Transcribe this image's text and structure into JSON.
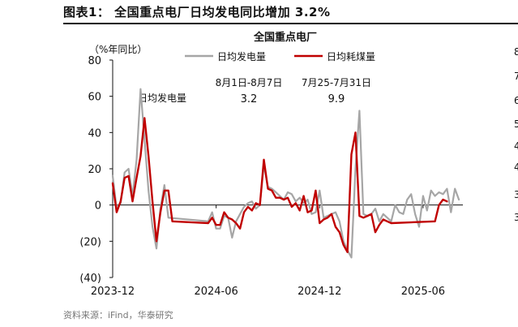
{
  "figure_title": "图表1：  全国重点电厂日均发电同比增加 3.2%",
  "source": "资料来源：iFind，华泰研究",
  "chart_data": {
    "type": "line",
    "title": "全国重点电厂",
    "ylabel": "（%年同比）",
    "xlabel": "",
    "ylim": [
      -40,
      80
    ],
    "yticks": [
      -40,
      -20,
      0,
      20,
      40,
      60,
      80
    ],
    "ytick_labels": [
      "(40)",
      "(20)",
      "0",
      "20",
      "40",
      "60",
      "80"
    ],
    "xtick_labels": [
      "2023-12",
      "2024-06",
      "2024-12",
      "2025-06"
    ],
    "xtick_values": [
      0,
      26,
      52,
      78
    ],
    "xlim": [
      0,
      88
    ],
    "grid": false,
    "legend_position": "top-center",
    "colors": {
      "generation": "#a6a6a6",
      "coal": "#c00000"
    },
    "series": [
      {
        "name": "日均发电量",
        "color": "#a6a6a6",
        "points": [
          [
            0,
            16
          ],
          [
            1,
            -2
          ],
          [
            2,
            1
          ],
          [
            3,
            18
          ],
          [
            4,
            20
          ],
          [
            5,
            5
          ],
          [
            6,
            25
          ],
          [
            7,
            64
          ],
          [
            8,
            36
          ],
          [
            9,
            8
          ],
          [
            10,
            -12
          ],
          [
            11,
            -24
          ],
          [
            12,
            -2
          ],
          [
            13,
            11
          ],
          [
            14,
            -7
          ],
          [
            24,
            -9
          ],
          [
            25,
            -4
          ],
          [
            26,
            -13
          ],
          [
            27,
            -13
          ],
          [
            28,
            -6
          ],
          [
            29,
            -7
          ],
          [
            30,
            -18
          ],
          [
            31,
            -9
          ],
          [
            32,
            -5
          ],
          [
            33,
            -1
          ],
          [
            34,
            1
          ],
          [
            35,
            2
          ],
          [
            36,
            -2
          ],
          [
            37,
            0
          ],
          [
            38,
            22
          ],
          [
            39,
            10
          ],
          [
            40,
            9
          ],
          [
            41,
            7
          ],
          [
            42,
            5
          ],
          [
            43,
            3
          ],
          [
            44,
            7
          ],
          [
            45,
            6
          ],
          [
            46,
            2
          ],
          [
            47,
            4
          ],
          [
            48,
            1
          ],
          [
            49,
            3
          ],
          [
            50,
            -5
          ],
          [
            51,
            -4
          ],
          [
            52,
            8
          ],
          [
            53,
            -7
          ],
          [
            54,
            -6
          ],
          [
            55,
            -5
          ],
          [
            56,
            -4
          ],
          [
            57,
            -9
          ],
          [
            58,
            -20
          ],
          [
            59,
            -25
          ],
          [
            60,
            -29
          ],
          [
            61,
            20
          ],
          [
            62,
            52
          ],
          [
            63,
            -5
          ],
          [
            64,
            -6
          ],
          [
            65,
            -5
          ],
          [
            66,
            -2
          ],
          [
            67,
            -9
          ],
          [
            68,
            -5
          ],
          [
            69,
            -7
          ],
          [
            70,
            -9
          ],
          [
            71,
            0
          ],
          [
            72,
            -4
          ],
          [
            73,
            -5
          ],
          [
            74,
            3
          ],
          [
            75,
            6
          ],
          [
            76,
            -5
          ],
          [
            77,
            -12
          ],
          [
            78,
            5
          ],
          [
            79,
            -3
          ],
          [
            80,
            8
          ],
          [
            81,
            5
          ],
          [
            82,
            7
          ],
          [
            83,
            6
          ],
          [
            84,
            9
          ],
          [
            85,
            -4
          ],
          [
            86,
            9
          ],
          [
            87,
            3
          ]
        ]
      },
      {
        "name": "日均耗煤量",
        "color": "#c00000",
        "points": [
          [
            0,
            12
          ],
          [
            1,
            -4
          ],
          [
            2,
            2
          ],
          [
            3,
            15
          ],
          [
            4,
            16
          ],
          [
            5,
            2
          ],
          [
            6,
            15
          ],
          [
            7,
            27
          ],
          [
            8,
            48
          ],
          [
            9,
            27
          ],
          [
            10,
            2
          ],
          [
            11,
            -20
          ],
          [
            12,
            -4
          ],
          [
            13,
            8
          ],
          [
            14,
            8
          ],
          [
            15,
            -9
          ],
          [
            24,
            -10
          ],
          [
            25,
            -7
          ],
          [
            26,
            -11
          ],
          [
            27,
            -11
          ],
          [
            28,
            -4
          ],
          [
            29,
            -7
          ],
          [
            30,
            -8
          ],
          [
            31,
            -10
          ],
          [
            32,
            -13
          ],
          [
            33,
            -4
          ],
          [
            34,
            -1
          ],
          [
            35,
            -3
          ],
          [
            36,
            1
          ],
          [
            37,
            0
          ],
          [
            38,
            25
          ],
          [
            39,
            9
          ],
          [
            40,
            8
          ],
          [
            41,
            4
          ],
          [
            42,
            4
          ],
          [
            43,
            3
          ],
          [
            44,
            4
          ],
          [
            45,
            -1
          ],
          [
            46,
            1
          ],
          [
            47,
            -3
          ],
          [
            48,
            5
          ],
          [
            49,
            -4
          ],
          [
            50,
            -3
          ],
          [
            51,
            8
          ],
          [
            52,
            -10
          ],
          [
            53,
            -8
          ],
          [
            54,
            -7
          ],
          [
            55,
            -5
          ],
          [
            56,
            -12
          ],
          [
            57,
            -15
          ],
          [
            58,
            -22
          ],
          [
            59,
            -26
          ],
          [
            60,
            28
          ],
          [
            61,
            40
          ],
          [
            62,
            -6
          ],
          [
            63,
            -7
          ],
          [
            64,
            -6
          ],
          [
            65,
            -5
          ],
          [
            66,
            -15
          ],
          [
            67,
            -11
          ],
          [
            68,
            -8
          ],
          [
            69,
            -9
          ],
          [
            70,
            -10
          ],
          [
            81,
            -9
          ],
          [
            82,
            0
          ],
          [
            83,
            3
          ],
          [
            84,
            2
          ]
        ]
      }
    ],
    "annotations": [
      {
        "text": "日均发电量",
        "role": "row-label"
      },
      {
        "text": "8月1日-8月7日",
        "value": "3.2"
      },
      {
        "text": "7月25-7月31日",
        "value": "9.9"
      }
    ],
    "right_panel_ticks": [
      "8",
      "7",
      "6",
      "5",
      "4",
      "4",
      "3",
      "3"
    ]
  }
}
